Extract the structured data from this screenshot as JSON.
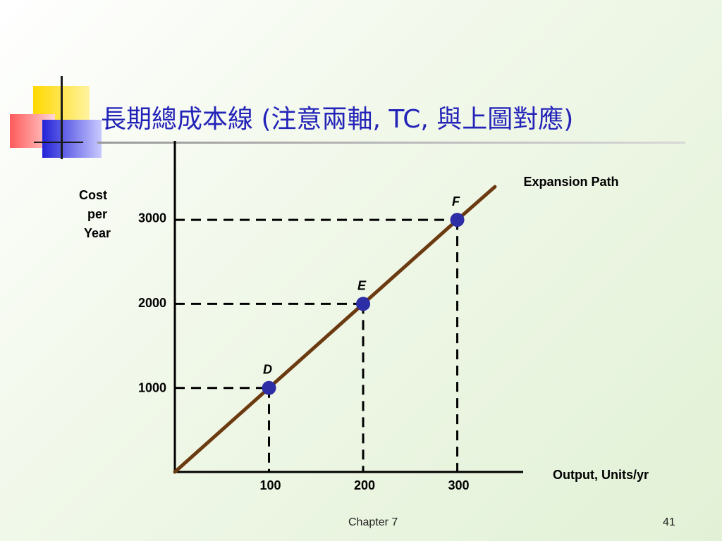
{
  "title": "長期總成本線 (注意兩軸, TC, 與上圖對應)",
  "colors": {
    "title": "#2323b8",
    "line": "#6b3a10",
    "point": "#2d2da6",
    "axis": "#000000",
    "guide": "#000000"
  },
  "footer": {
    "chapter": "Chapter 7",
    "page": "41"
  },
  "chart_data": {
    "type": "line",
    "xlabel": "Output, Units/yr",
    "ylabel_lines": [
      "Cost",
      "per",
      "Year"
    ],
    "x_ticks": [
      100,
      200,
      300
    ],
    "y_ticks": [
      1000,
      2000,
      3000
    ],
    "xlim": [
      0,
      370
    ],
    "ylim": [
      0,
      3900
    ],
    "grid": false,
    "series": [
      {
        "name": "Expansion Path",
        "x": [
          0,
          100,
          200,
          300,
          340
        ],
        "y": [
          0,
          990,
          1980,
          2970,
          3360
        ]
      }
    ],
    "points": [
      {
        "label": "D",
        "x": 100,
        "y": 990
      },
      {
        "label": "E",
        "x": 200,
        "y": 1980
      },
      {
        "label": "F",
        "x": 300,
        "y": 2970
      }
    ]
  }
}
